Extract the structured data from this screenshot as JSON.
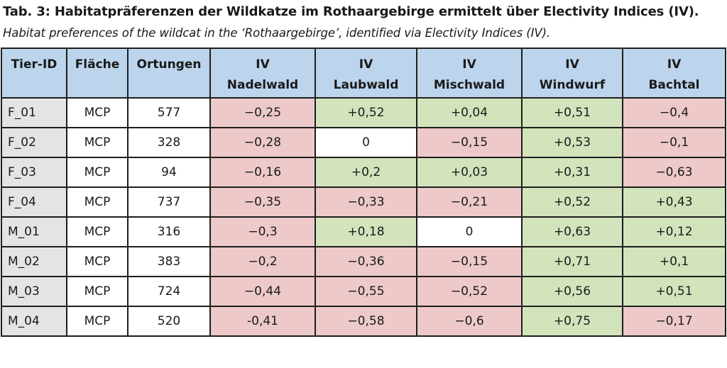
{
  "title": "Tab. 3: Habitatpräferenzen der Wildkatze im Rothaargebirge ermittelt über Electivity Indices (IV).",
  "subtitle": "Habitat preferences of the wildcat in the ‘Rothaargebirge’, identified via Electivity Indices (IV).",
  "colors": {
    "header": "#bcd4ec",
    "negative": "#edc9c9",
    "positive": "#d3e3bc",
    "id_column": "#e4e4e4"
  },
  "headers": [
    [
      "Tier-ID",
      ""
    ],
    [
      "Fläche",
      ""
    ],
    [
      "Ortungen",
      ""
    ],
    [
      "IV",
      "Nadelwald"
    ],
    [
      "IV",
      "Laubwald"
    ],
    [
      "IV",
      "Mischwald"
    ],
    [
      "IV",
      "Windwurf"
    ],
    [
      "IV",
      "Bachtal"
    ]
  ],
  "rows": [
    [
      "F_01",
      "MCP",
      "577",
      "−0,25",
      "+0,52",
      "+0,04",
      "+0,51",
      "−0,4"
    ],
    [
      "F_02",
      "MCP",
      "328",
      "−0,28",
      "0",
      "−0,15",
      "+0,53",
      "−0,1"
    ],
    [
      "F_03",
      "MCP",
      "94",
      "−0,16",
      "+0,2",
      "+0,03",
      "+0,31",
      "−0,63"
    ],
    [
      "F_04",
      "MCP",
      "737",
      "−0,35",
      "−0,33",
      "−0,21",
      "+0,52",
      "+0,43"
    ],
    [
      "M_01",
      "MCP",
      "316",
      "−0,3",
      "+0,18",
      "0",
      "+0,63",
      "+0,12"
    ],
    [
      "M_02",
      "MCP",
      "383",
      "−0,2",
      "−0,36",
      "−0,15",
      "+0,71",
      "+0,1"
    ],
    [
      "M_03",
      "MCP",
      "724",
      "−0,44",
      "−0,55",
      "−0,52",
      "+0,56",
      "+0,51"
    ],
    [
      "M_04",
      "MCP",
      "520",
      "-0,41",
      "−0,58",
      "−0,6",
      "+0,75",
      "−0,17"
    ]
  ]
}
